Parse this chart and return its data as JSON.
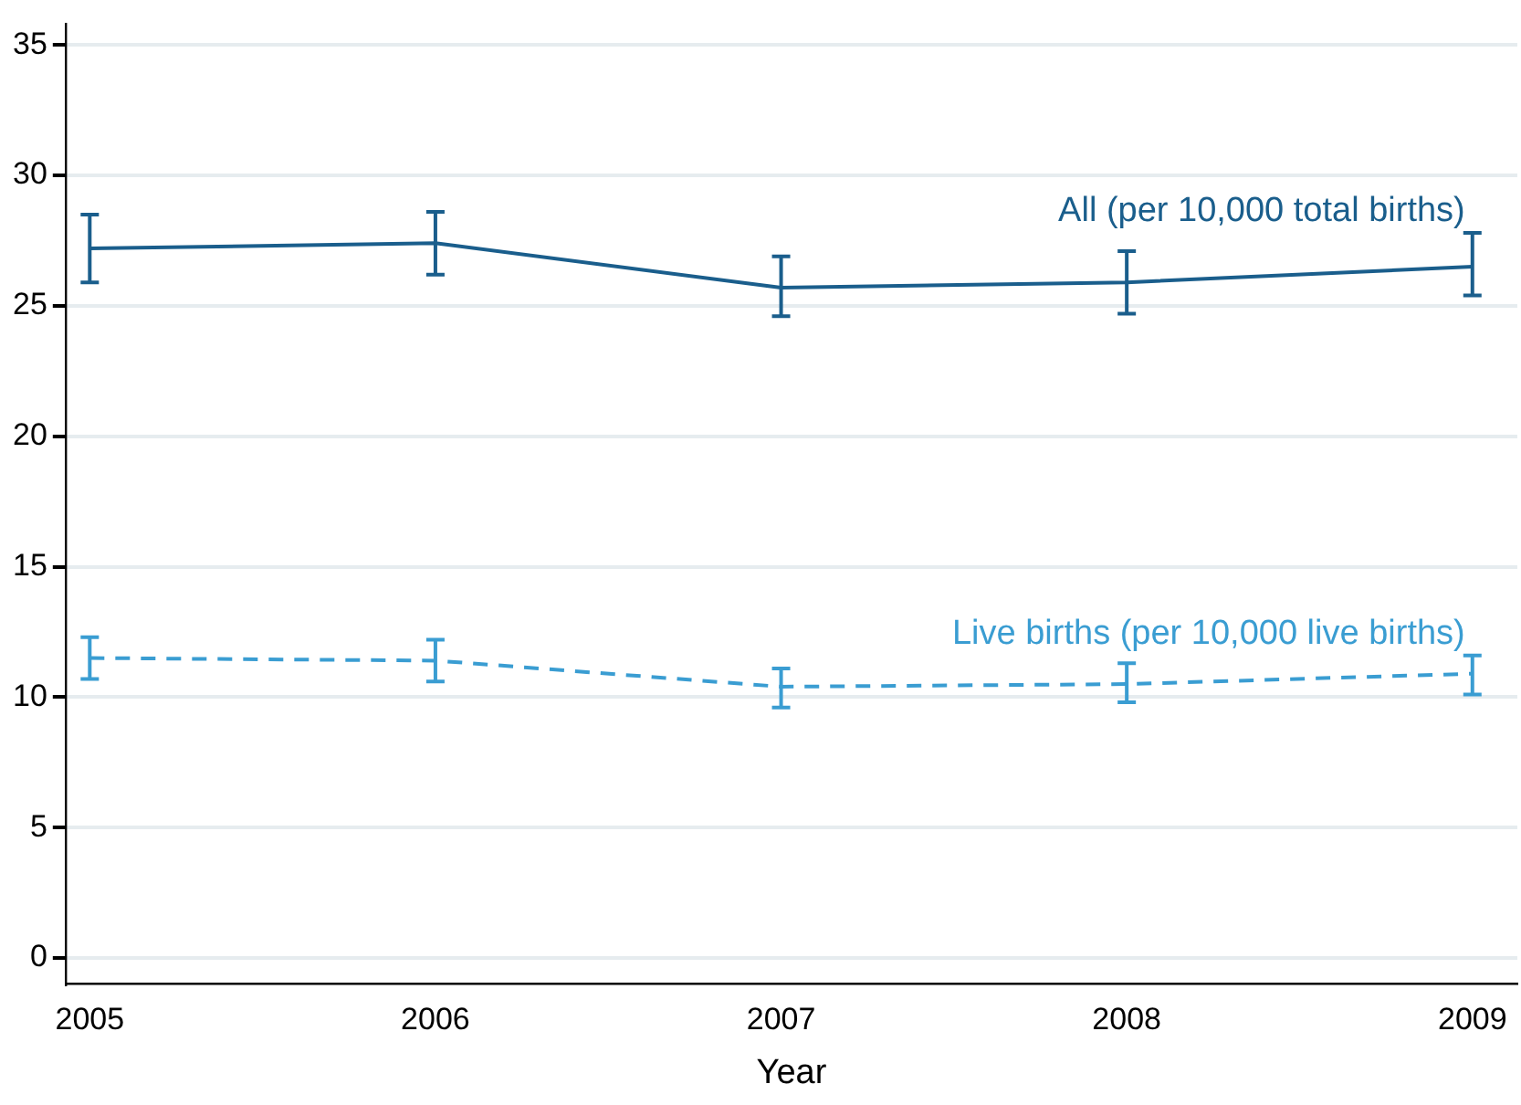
{
  "chart_data": {
    "type": "line",
    "xlabel": "Year",
    "x": [
      2005,
      2006,
      2007,
      2008,
      2009
    ],
    "xlim": [
      2004.93,
      2009.13
    ],
    "xticks": [
      2005,
      2006,
      2007,
      2008,
      2009
    ],
    "ylim": [
      -1,
      35.8
    ],
    "yticks": [
      0,
      5,
      10,
      15,
      20,
      25,
      30,
      35
    ],
    "grid": "y",
    "marker": "none",
    "legend": false,
    "series": [
      {
        "name": "All (per 10,000 total births)",
        "color": "#1a5e8c",
        "line_style": "solid",
        "values": [
          27.2,
          27.4,
          25.7,
          25.9,
          26.5
        ],
        "errors": [
          [
            25.9,
            28.5
          ],
          [
            26.2,
            28.6
          ],
          [
            24.6,
            26.9
          ],
          [
            24.7,
            27.1
          ],
          [
            25.4,
            27.8
          ]
        ]
      },
      {
        "name": "Live births (per 10,000 live births)",
        "color": "#3a9dd2",
        "line_style": "dashed",
        "values": [
          11.5,
          11.4,
          10.4,
          10.5,
          10.9
        ],
        "errors": [
          [
            10.7,
            12.3
          ],
          [
            10.6,
            12.2
          ],
          [
            9.6,
            11.1
          ],
          [
            9.8,
            11.3
          ],
          [
            10.1,
            11.6
          ]
        ]
      }
    ]
  }
}
